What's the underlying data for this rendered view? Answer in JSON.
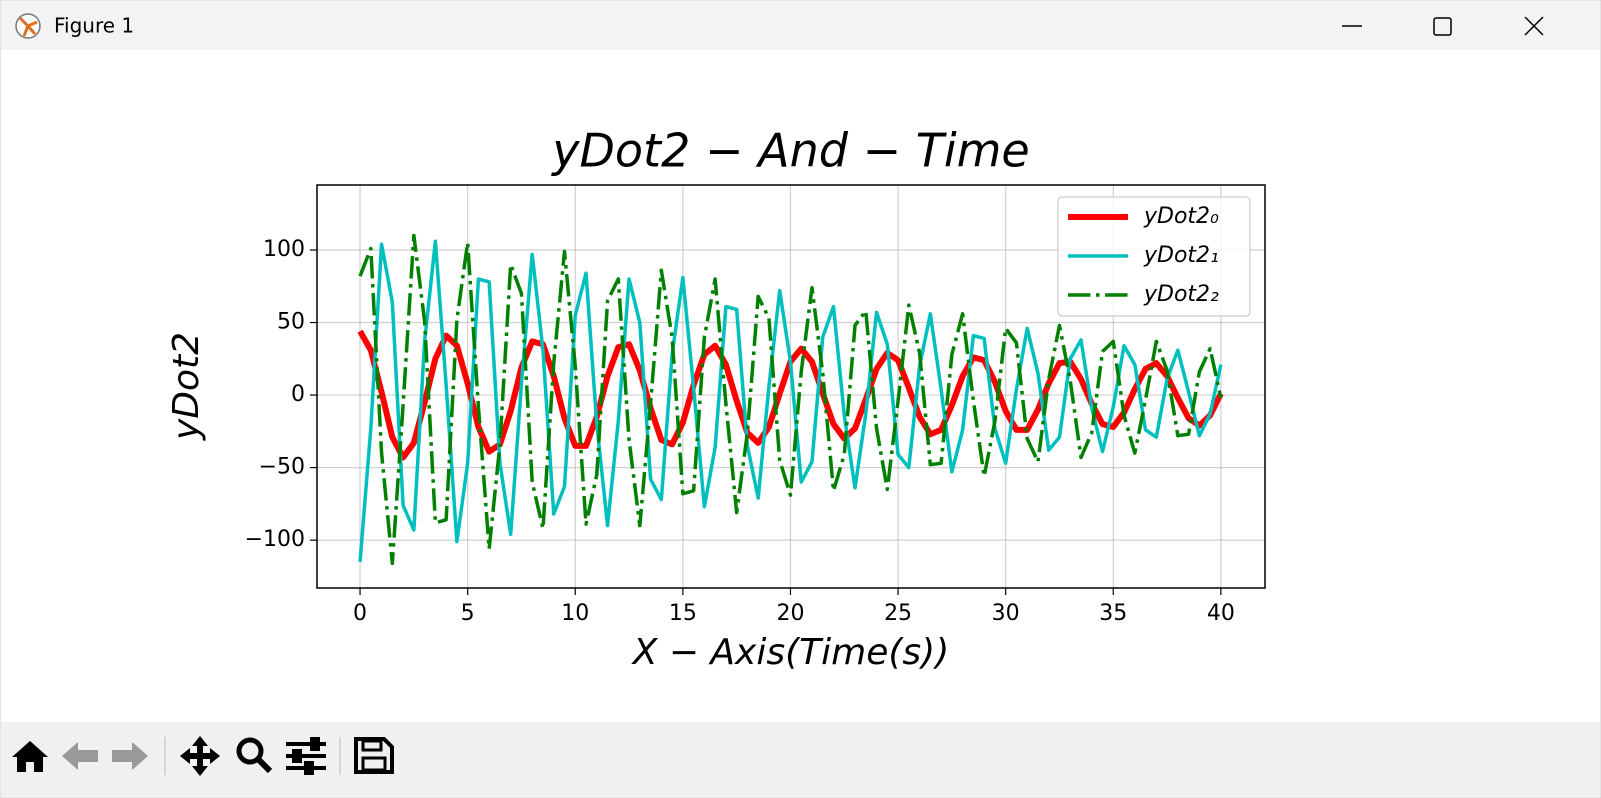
{
  "window": {
    "title": "Figure 1"
  },
  "chart_data": {
    "type": "line",
    "title": "yDot2 − And − Time",
    "xlabel": "X − Axis(Time(s))",
    "ylabel": "yDot2",
    "x": [
      0,
      0.5,
      1,
      1.5,
      2,
      2.5,
      3,
      3.5,
      4,
      4.5,
      5,
      5.5,
      6,
      6.5,
      7,
      7.5,
      8,
      8.5,
      9,
      9.5,
      10,
      10.5,
      11,
      11.5,
      12,
      12.5,
      13,
      13.5,
      14,
      14.5,
      15,
      15.5,
      16,
      16.5,
      17,
      17.5,
      18,
      18.5,
      19,
      19.5,
      20,
      20.5,
      21,
      21.5,
      22,
      22.5,
      23,
      23.5,
      24,
      24.5,
      25,
      25.5,
      26,
      26.5,
      27,
      27.5,
      28,
      28.5,
      29,
      29.5,
      30,
      30.5,
      31,
      31.5,
      32,
      32.5,
      33,
      33.5,
      34,
      34.5,
      35,
      35.5,
      36,
      36.5,
      37,
      37.5,
      38,
      38.5,
      39,
      39.5,
      40
    ],
    "series": [
      {
        "name": "yDot2₀",
        "color": "#ff0000",
        "linestyle": "-",
        "linewidth": 6,
        "values": [
          44,
          31,
          2,
          -29,
          -43,
          -33,
          -5,
          25,
          41,
          34,
          8,
          -22,
          -39,
          -34,
          -11,
          19,
          37,
          35,
          13,
          -16,
          -35,
          -35,
          -15,
          13,
          33,
          35,
          17,
          -9,
          -31,
          -34,
          -19,
          7,
          28,
          34,
          21,
          -4,
          -26,
          -33,
          -22,
          1,
          23,
          32,
          23,
          1,
          -20,
          -30,
          -23,
          -3,
          18,
          29,
          24,
          5,
          -15,
          -27,
          -24,
          -7,
          13,
          26,
          24,
          9,
          -11,
          -24,
          -24,
          -10,
          8,
          22,
          23,
          11,
          -6,
          -20,
          -22,
          -12,
          4,
          18,
          22,
          13,
          -2,
          -16,
          -21,
          -14,
          1
        ]
      },
      {
        "name": "yDot2₁",
        "color": "#00bfbf",
        "linestyle": "-",
        "linewidth": 3.5,
        "values": [
          -115,
          -23,
          104,
          64,
          -76,
          -93,
          37,
          106,
          7,
          -101,
          -47,
          80,
          78,
          -47,
          -96,
          8,
          97,
          31,
          -82,
          -63,
          55,
          84,
          -20,
          -90,
          -18,
          80,
          50,
          -58,
          -72,
          28,
          81,
          5,
          -77,
          -36,
          61,
          59,
          -35,
          -71,
          6,
          72,
          23,
          -60,
          -46,
          40,
          61,
          -14,
          -64,
          -13,
          57,
          35,
          -41,
          -50,
          20,
          56,
          4,
          -53,
          -24,
          41,
          39,
          -23,
          -47,
          4,
          46,
          15,
          -38,
          -29,
          25,
          38,
          -9,
          -39,
          -8,
          34,
          21,
          -24,
          -29,
          11,
          31,
          2,
          -28,
          -13,
          21
        ]
      },
      {
        "name": "yDot2₂",
        "color": "#008000",
        "linestyle": "-.",
        "linewidth": 3.5,
        "values": [
          82,
          101,
          -40,
          -116,
          -7,
          110,
          51,
          -88,
          -86,
          52,
          105,
          -8,
          -106,
          -34,
          90,
          70,
          -60,
          -92,
          22,
          99,
          20,
          -89,
          -55,
          65,
          80,
          -31,
          -90,
          -6,
          86,
          40,
          -68,
          -66,
          40,
          80,
          -6,
          -81,
          -26,
          68,
          53,
          -45,
          -69,
          16,
          74,
          15,
          -66,
          -41,
          48,
          58,
          -23,
          -65,
          -4,
          62,
          29,
          -48,
          -47,
          28,
          56,
          -4,
          -56,
          -18,
          46,
          36,
          -30,
          -46,
          11,
          48,
          10,
          -43,
          -26,
          30,
          37,
          -14,
          -40,
          -3,
          37,
          17,
          -28,
          -27,
          16,
          32,
          -2
        ]
      }
    ],
    "xlim": [
      -2,
      42.05
    ],
    "ylim": [
      -133,
      144.8
    ],
    "xticks": [
      0,
      5,
      10,
      15,
      20,
      25,
      30,
      35,
      40
    ],
    "yticks": [
      {
        "value": -100,
        "label": "−100"
      },
      {
        "value": -50,
        "label": "−50"
      },
      0,
      50,
      100
    ],
    "grid": true,
    "legend": "upper right"
  }
}
